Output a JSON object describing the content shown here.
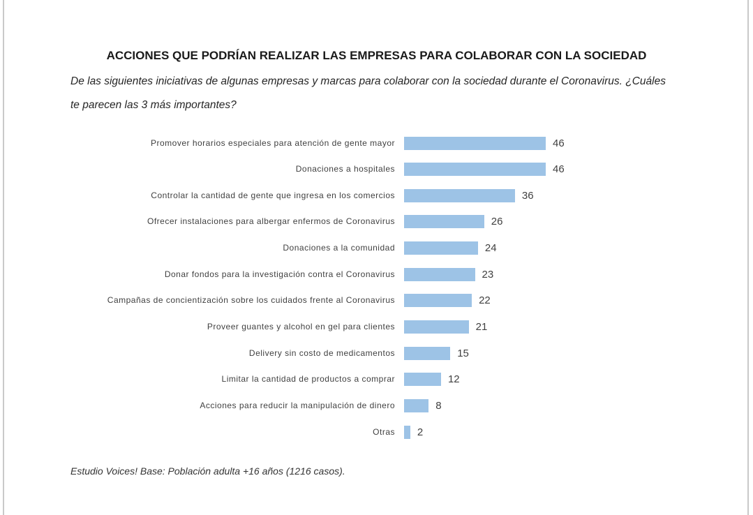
{
  "colors": {
    "bar": "#9DC3E6"
  },
  "chart_data": {
    "type": "bar",
    "orientation": "horizontal",
    "title": "ACCIONES QUE PODRÍAN REALIZAR LAS EMPRESAS PARA COLABORAR CON LA SOCIEDAD",
    "subtitle_lines": [
      "De las siguientes iniciativas de algunas empresas y marcas para colaborar con la sociedad durante el Coronavirus. ¿Cuáles",
      "te parecen las 3 más importantes?"
    ],
    "categories": [
      "Promover horarios especiales para atención de gente mayor",
      "Donaciones a hospitales",
      "Controlar la cantidad de gente que ingresa en los comercios",
      "Ofrecer instalaciones para albergar enfermos de Coronavirus",
      "Donaciones a la comunidad",
      "Donar fondos para la investigación contra el Coronavirus",
      "Campañas de concientización sobre los cuidados frente al Coronavirus",
      "Proveer guantes y alcohol en gel para clientes",
      "Delivery sin costo de medicamentos",
      "Limitar la cantidad de productos a comprar",
      "Acciones para reducir la manipulación de dinero",
      "Otras"
    ],
    "values": [
      46,
      46,
      36,
      26,
      24,
      23,
      22,
      21,
      15,
      12,
      8,
      2
    ],
    "xlabel": "",
    "ylabel": "",
    "grid": false,
    "legend": "none",
    "note": "Estudio Voices! Base: Población adulta +16 años (1216 casos)."
  }
}
